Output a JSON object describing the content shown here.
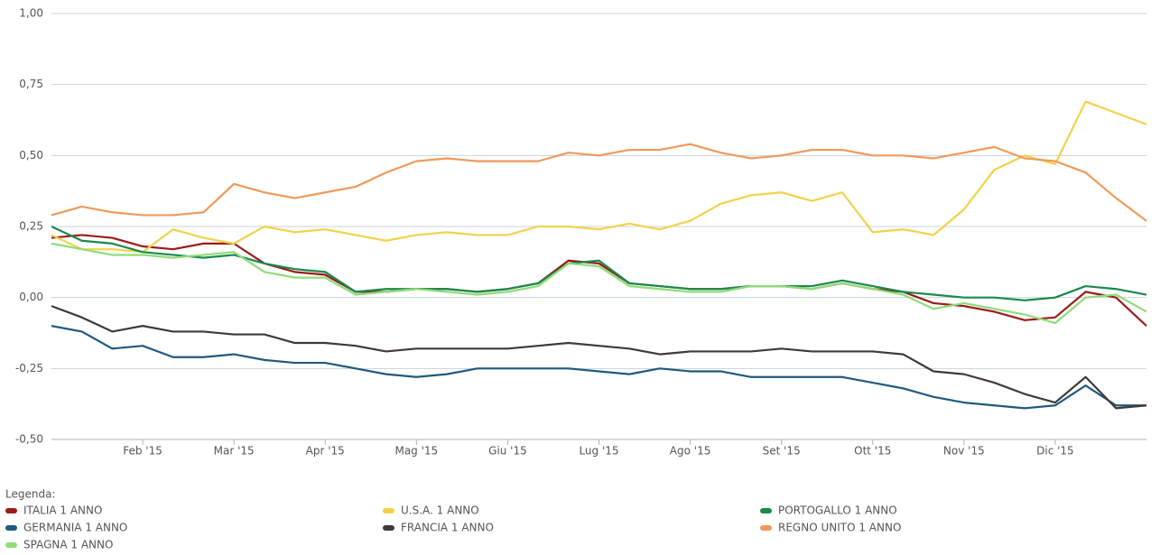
{
  "chart_data": {
    "type": "line",
    "categories": [
      null,
      null,
      null,
      "Feb '15",
      null,
      null,
      "Mar '15",
      null,
      null,
      "Apr '15",
      null,
      null,
      "Mag '15",
      null,
      null,
      "Giu '15",
      null,
      null,
      "Lug '15",
      null,
      null,
      "Ago '15",
      null,
      null,
      "Set '15",
      null,
      null,
      "Ott '15",
      null,
      null,
      "Nov '15",
      null,
      null,
      "Dic '15",
      null,
      null,
      null
    ],
    "ylim": [
      -0.5,
      1.0
    ],
    "yticks": [
      {
        "value": -0.5,
        "label": "-0,50"
      },
      {
        "value": -0.25,
        "label": "-0,25"
      },
      {
        "value": 0,
        "label": "0,00"
      },
      {
        "value": 0.25,
        "label": "0,25"
      },
      {
        "value": 0.5,
        "label": "0,50"
      },
      {
        "value": 0.75,
        "label": "0,75"
      },
      {
        "value": 1.0,
        "label": "1,00"
      }
    ],
    "grid": true,
    "legend_title": "Legenda:",
    "series": [
      {
        "name": "ITALIA 1 ANNO",
        "color": "#9b1b1b",
        "values": [
          0.21,
          0.22,
          0.21,
          0.18,
          0.17,
          0.19,
          0.19,
          0.12,
          0.09,
          0.08,
          0.02,
          0.02,
          0.03,
          0.03,
          0.02,
          0.03,
          0.05,
          0.13,
          0.12,
          0.05,
          0.04,
          0.03,
          0.03,
          0.04,
          0.04,
          0.03,
          0.05,
          0.03,
          0.02,
          -0.02,
          -0.03,
          -0.05,
          -0.08,
          -0.07,
          0.02,
          0.0,
          -0.1
        ]
      },
      {
        "name": "U.S.A. 1 ANNO",
        "color": "#f2d24a",
        "values": [
          0.22,
          0.17,
          0.17,
          0.16,
          0.24,
          0.21,
          0.19,
          0.25,
          0.23,
          0.24,
          0.22,
          0.2,
          0.22,
          0.23,
          0.22,
          0.22,
          0.25,
          0.25,
          0.24,
          0.26,
          0.24,
          0.27,
          0.33,
          0.36,
          0.37,
          0.34,
          0.37,
          0.23,
          0.24,
          0.22,
          0.31,
          0.45,
          0.5,
          0.47,
          0.69,
          0.65,
          0.61
        ]
      },
      {
        "name": "PORTOGALLO 1 ANNO",
        "color": "#1a8a4a",
        "values": [
          0.25,
          0.2,
          0.19,
          0.16,
          0.15,
          0.14,
          0.15,
          0.12,
          0.1,
          0.09,
          0.02,
          0.03,
          0.03,
          0.03,
          0.02,
          0.03,
          0.05,
          0.12,
          0.13,
          0.05,
          0.04,
          0.03,
          0.03,
          0.04,
          0.04,
          0.04,
          0.06,
          0.04,
          0.02,
          0.01,
          0.0,
          0.0,
          -0.01,
          0.0,
          0.04,
          0.03,
          0.01
        ]
      },
      {
        "name": "GERMANIA 1 ANNO",
        "color": "#1f5a7e",
        "values": [
          -0.1,
          -0.12,
          -0.18,
          -0.17,
          -0.21,
          -0.21,
          -0.2,
          -0.22,
          -0.23,
          -0.23,
          -0.25,
          -0.27,
          -0.28,
          -0.27,
          -0.25,
          -0.25,
          -0.25,
          -0.25,
          -0.26,
          -0.27,
          -0.25,
          -0.26,
          -0.26,
          -0.28,
          -0.28,
          -0.28,
          -0.28,
          -0.3,
          -0.32,
          -0.35,
          -0.37,
          -0.38,
          -0.39,
          -0.38,
          -0.31,
          -0.38,
          -0.38
        ]
      },
      {
        "name": "FRANCIA 1 ANNO",
        "color": "#3f3a38",
        "values": [
          -0.03,
          -0.07,
          -0.12,
          -0.1,
          -0.12,
          -0.12,
          -0.13,
          -0.13,
          -0.16,
          -0.16,
          -0.17,
          -0.19,
          -0.18,
          -0.18,
          -0.18,
          -0.18,
          -0.17,
          -0.16,
          -0.17,
          -0.18,
          -0.2,
          -0.19,
          -0.19,
          -0.19,
          -0.18,
          -0.19,
          -0.19,
          -0.19,
          -0.2,
          -0.26,
          -0.27,
          -0.3,
          -0.34,
          -0.37,
          -0.28,
          -0.39,
          -0.38
        ]
      },
      {
        "name": "REGNO UNITO 1 ANNO",
        "color": "#ef9a5a",
        "values": [
          0.29,
          0.32,
          0.3,
          0.29,
          0.29,
          0.3,
          0.4,
          0.37,
          0.35,
          0.37,
          0.39,
          0.44,
          0.48,
          0.49,
          0.48,
          0.48,
          0.48,
          0.51,
          0.5,
          0.52,
          0.52,
          0.54,
          0.51,
          0.49,
          0.5,
          0.52,
          0.52,
          0.5,
          0.5,
          0.49,
          0.51,
          0.53,
          0.49,
          0.48,
          0.44,
          0.35,
          0.27
        ]
      },
      {
        "name": "SPAGNA 1 ANNO",
        "color": "#8fdc7a",
        "values": [
          0.19,
          0.17,
          0.15,
          0.15,
          0.14,
          0.15,
          0.16,
          0.09,
          0.07,
          0.07,
          0.01,
          0.02,
          0.03,
          0.02,
          0.01,
          0.02,
          0.04,
          0.12,
          0.11,
          0.04,
          0.03,
          0.02,
          0.02,
          0.04,
          0.04,
          0.03,
          0.05,
          0.03,
          0.01,
          -0.04,
          -0.02,
          -0.04,
          -0.06,
          -0.09,
          0.0,
          0.01,
          -0.05
        ]
      }
    ]
  }
}
